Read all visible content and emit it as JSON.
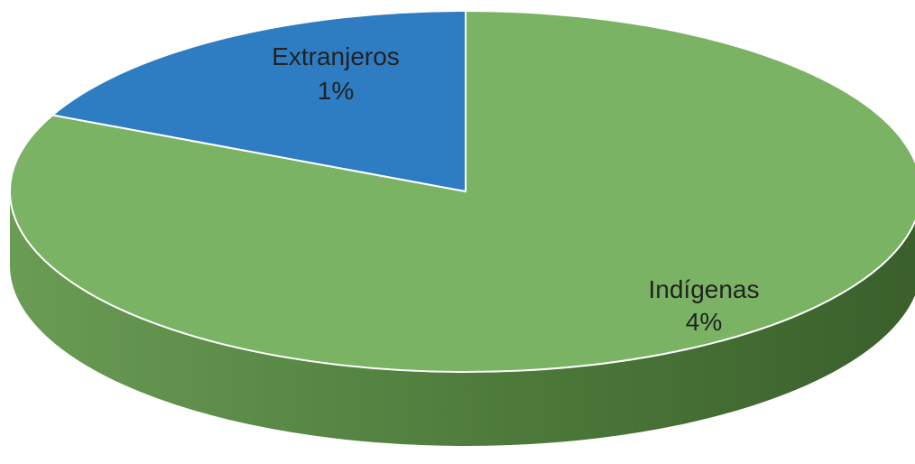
{
  "chart_data": {
    "type": "pie",
    "style": "3d",
    "slices": [
      {
        "label": "Indígenas",
        "value_label": "4%",
        "value": 4,
        "color": "#7ab363",
        "side_color": "#4f7e3c"
      },
      {
        "label": "Extranjeros",
        "value_label": "1%",
        "value": 1,
        "color": "#2e7cc1",
        "side_color": "#1f5a8c"
      }
    ]
  }
}
